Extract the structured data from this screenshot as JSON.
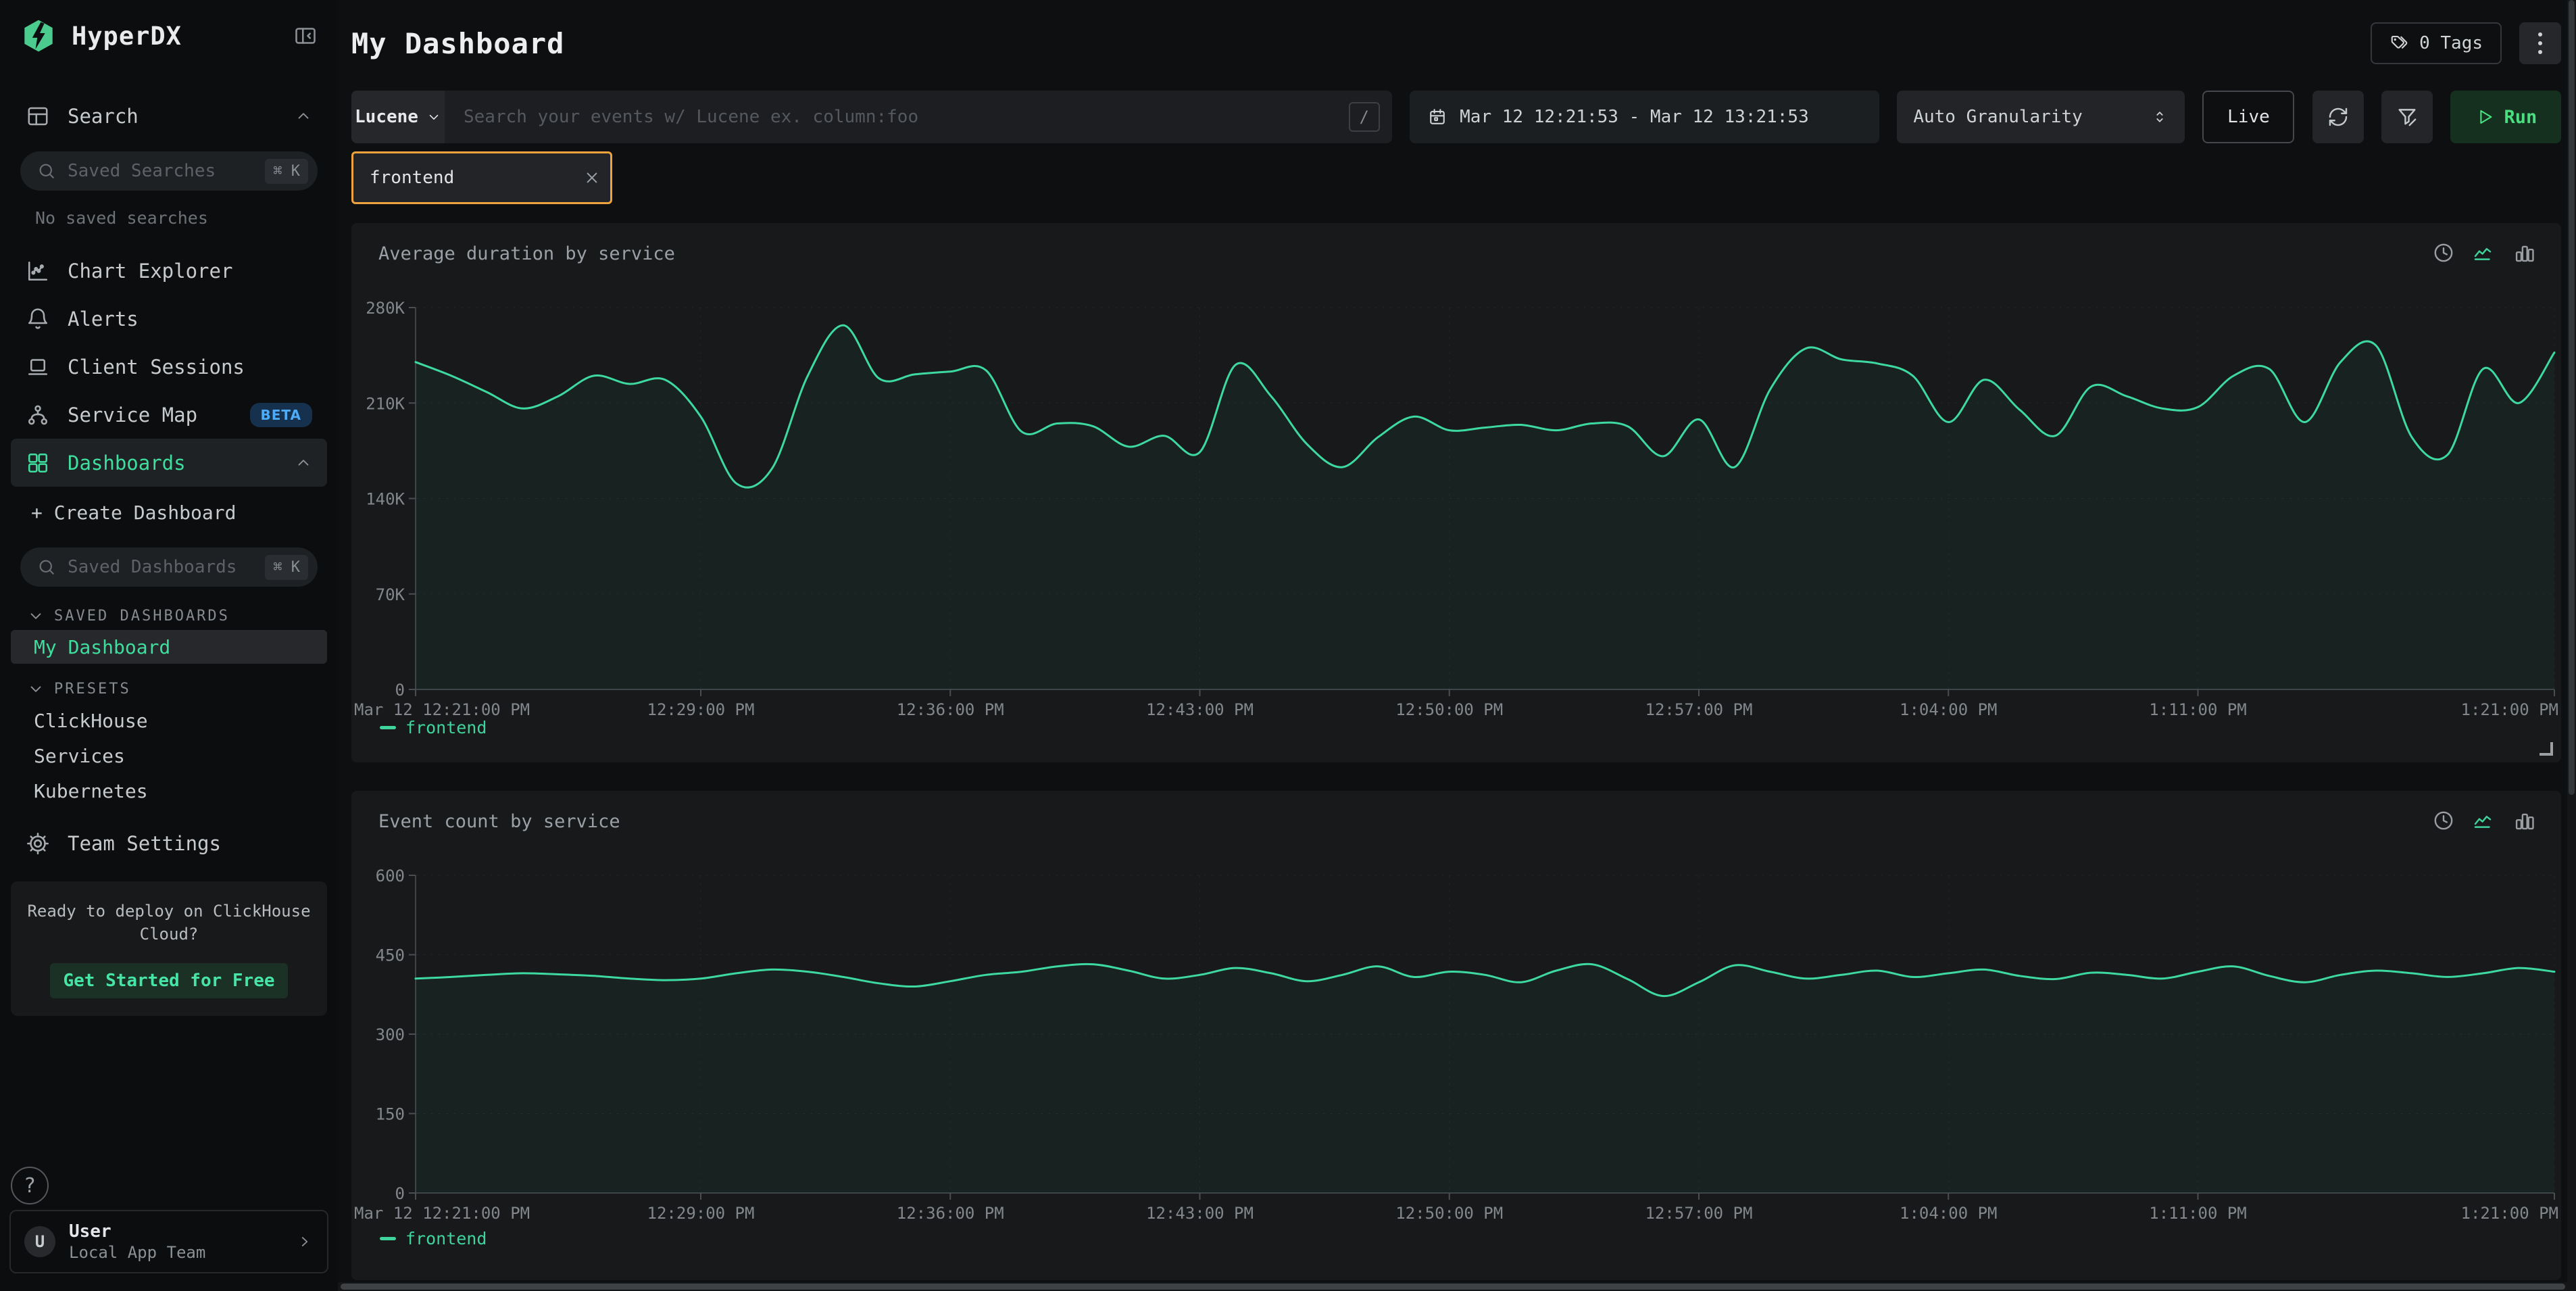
{
  "app": {
    "title": "HyperDX"
  },
  "colors": {
    "accent_green": "#3fd49c",
    "bright_green": "#4ade80",
    "line_green": "#3dd9a0",
    "chip_orange": "#eda23d",
    "beta_blue": "#4dabf7",
    "panel_bg": "#17191b"
  },
  "sidebar": {
    "logo": "HyperDX",
    "search_nav": "Search",
    "saved_searches": {
      "placeholder": "Saved Searches",
      "shortcut": "⌘ K"
    },
    "no_saved_searches": "No saved searches",
    "nav": [
      {
        "label": "Chart Explorer"
      },
      {
        "label": "Alerts"
      },
      {
        "label": "Client Sessions"
      },
      {
        "label": "Service Map",
        "badge": "BETA"
      },
      {
        "label": "Dashboards"
      }
    ],
    "create_dashboard": "+ Create Dashboard",
    "saved_dashboards": {
      "placeholder": "Saved Dashboards",
      "shortcut": "⌘ K"
    },
    "groups": [
      {
        "label": "SAVED DASHBOARDS",
        "items": [
          {
            "label": "My Dashboard"
          }
        ]
      },
      {
        "label": "PRESETS",
        "items": [
          {
            "label": "ClickHouse"
          },
          {
            "label": "Services"
          },
          {
            "label": "Kubernetes"
          }
        ]
      }
    ],
    "team_settings": "Team Settings",
    "promo": {
      "text_line1": "Ready to deploy on ClickHouse",
      "text_line2": "Cloud?",
      "cta": "Get Started for Free"
    },
    "help_label": "?",
    "user": {
      "initial": "U",
      "name": "User",
      "team": "Local App Team"
    }
  },
  "header": {
    "title": "My Dashboard",
    "tags": "0 Tags"
  },
  "toolbar": {
    "language": "Lucene",
    "search_placeholder": "Search your events w/ Lucene ex. column:foo",
    "slash_shortcut": "/",
    "date_range": "Mar 12 12:21:53 - Mar 12 13:21:53",
    "granularity": "Auto Granularity",
    "live": "Live",
    "run": "Run"
  },
  "filter_chip": {
    "value": "frontend"
  },
  "chart_data": [
    {
      "type": "line",
      "title": "Average duration by service",
      "xlim": [
        0,
        60
      ],
      "ylim": [
        0,
        280000
      ],
      "yticks": [
        {
          "value": 0,
          "label": "0"
        },
        {
          "value": 70000,
          "label": "70K"
        },
        {
          "value": 140000,
          "label": "140K"
        },
        {
          "value": 210000,
          "label": "210K"
        },
        {
          "value": 280000,
          "label": "280K"
        }
      ],
      "xticks": [
        {
          "minute": 0,
          "label": "Mar 12 12:21:00 PM"
        },
        {
          "minute": 8,
          "label": "12:29:00 PM"
        },
        {
          "minute": 15,
          "label": "12:36:00 PM"
        },
        {
          "minute": 22,
          "label": "12:43:00 PM"
        },
        {
          "minute": 29,
          "label": "12:50:00 PM"
        },
        {
          "minute": 36,
          "label": "12:57:00 PM"
        },
        {
          "minute": 43,
          "label": "1:04:00 PM"
        },
        {
          "minute": 50,
          "label": "1:11:00 PM"
        },
        {
          "minute": 60,
          "label": "1:21:00 PM"
        }
      ],
      "series": [
        {
          "name": "frontend",
          "color": "#3dd9a0",
          "values": [
            240000,
            230000,
            218000,
            206000,
            215000,
            230000,
            224000,
            227000,
            200000,
            151000,
            162000,
            230000,
            267000,
            228000,
            231000,
            233000,
            234000,
            189000,
            195000,
            193000,
            178000,
            186000,
            174000,
            238000,
            215000,
            180000,
            163000,
            185000,
            200000,
            190000,
            192000,
            194000,
            190000,
            195000,
            193000,
            171000,
            198000,
            163000,
            220000,
            250000,
            242000,
            239000,
            230000,
            196000,
            227000,
            205000,
            186000,
            222000,
            215000,
            206000,
            207000,
            230000,
            235000,
            196000,
            240000,
            252000,
            185000,
            172000,
            235000,
            210000,
            247000
          ]
        }
      ],
      "grid": true,
      "legend_position": "bottom-left"
    },
    {
      "type": "line",
      "title": "Event count by service",
      "xlim": [
        0,
        60
      ],
      "ylim": [
        0,
        600
      ],
      "yticks": [
        {
          "value": 0,
          "label": "0"
        },
        {
          "value": 150,
          "label": "150"
        },
        {
          "value": 300,
          "label": "300"
        },
        {
          "value": 450,
          "label": "450"
        },
        {
          "value": 600,
          "label": "600"
        }
      ],
      "xticks": [
        {
          "minute": 0,
          "label": "Mar 12 12:21:00 PM"
        },
        {
          "minute": 8,
          "label": "12:29:00 PM"
        },
        {
          "minute": 15,
          "label": "12:36:00 PM"
        },
        {
          "minute": 22,
          "label": "12:43:00 PM"
        },
        {
          "minute": 29,
          "label": "12:50:00 PM"
        },
        {
          "minute": 36,
          "label": "12:57:00 PM"
        },
        {
          "minute": 43,
          "label": "1:04:00 PM"
        },
        {
          "minute": 50,
          "label": "1:11:00 PM"
        },
        {
          "minute": 60,
          "label": "1:21:00 PM"
        }
      ],
      "series": [
        {
          "name": "frontend",
          "color": "#3dd9a0",
          "values": [
            405,
            408,
            412,
            415,
            413,
            410,
            405,
            402,
            405,
            415,
            422,
            418,
            408,
            396,
            390,
            400,
            412,
            418,
            428,
            432,
            420,
            405,
            412,
            425,
            415,
            400,
            412,
            428,
            408,
            418,
            412,
            398,
            420,
            432,
            404,
            372,
            398,
            430,
            418,
            405,
            412,
            420,
            408,
            415,
            422,
            410,
            404,
            416,
            412,
            405,
            418,
            428,
            410,
            398,
            412,
            420,
            415,
            408,
            415,
            425,
            418
          ]
        }
      ],
      "grid": true,
      "legend_position": "bottom-left"
    }
  ]
}
